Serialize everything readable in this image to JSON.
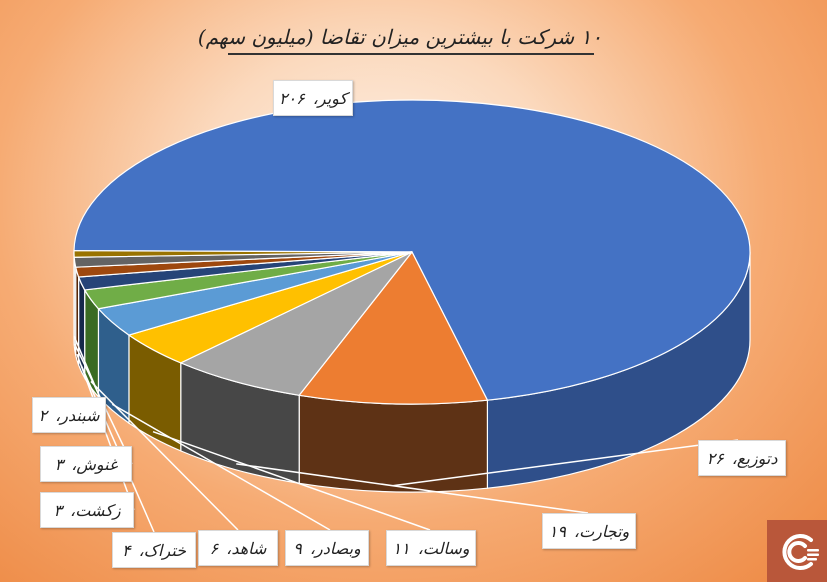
{
  "chart_data": {
    "type": "pie",
    "title": "۱۰ شرکت با بیشترین میزان تقاضا (میلیون سهم)",
    "value_format": "persian-digits",
    "slices": [
      {
        "label": "کویر",
        "value": 206,
        "value_text": "۲۰۶",
        "color": "#4472C4",
        "side": "#2f4f8a"
      },
      {
        "label": "دتوزیع",
        "value": 26,
        "value_text": "۲۶",
        "color": "#ED7D31",
        "side": "#5e3215"
      },
      {
        "label": "وتجارت",
        "value": 19,
        "value_text": "۱۹",
        "color": "#A5A5A5",
        "side": "#474747"
      },
      {
        "label": "وسالت",
        "value": 11,
        "value_text": "۱۱",
        "color": "#FFC000",
        "side": "#7a5c00"
      },
      {
        "label": "وبصادر",
        "value": 9,
        "value_text": "۹",
        "color": "#5B9BD5",
        "side": "#2f5f8c"
      },
      {
        "label": "شاهد",
        "value": 6,
        "value_text": "۶",
        "color": "#70AD47",
        "side": "#3a6b22"
      },
      {
        "label": "ختراک",
        "value": 4,
        "value_text": "۴",
        "color": "#264478",
        "side": "#15284a"
      },
      {
        "label": "زکشت",
        "value": 3,
        "value_text": "۳",
        "color": "#9E480E",
        "side": "#5a2806"
      },
      {
        "label": "غنوش",
        "value": 3,
        "value_text": "۳",
        "color": "#636363",
        "side": "#3a3a3a"
      },
      {
        "label": "شبندر",
        "value": 2,
        "value_text": "۲",
        "color": "#997300",
        "side": "#5c4500"
      }
    ],
    "legend": "none",
    "data_labels": "label, value"
  }
}
